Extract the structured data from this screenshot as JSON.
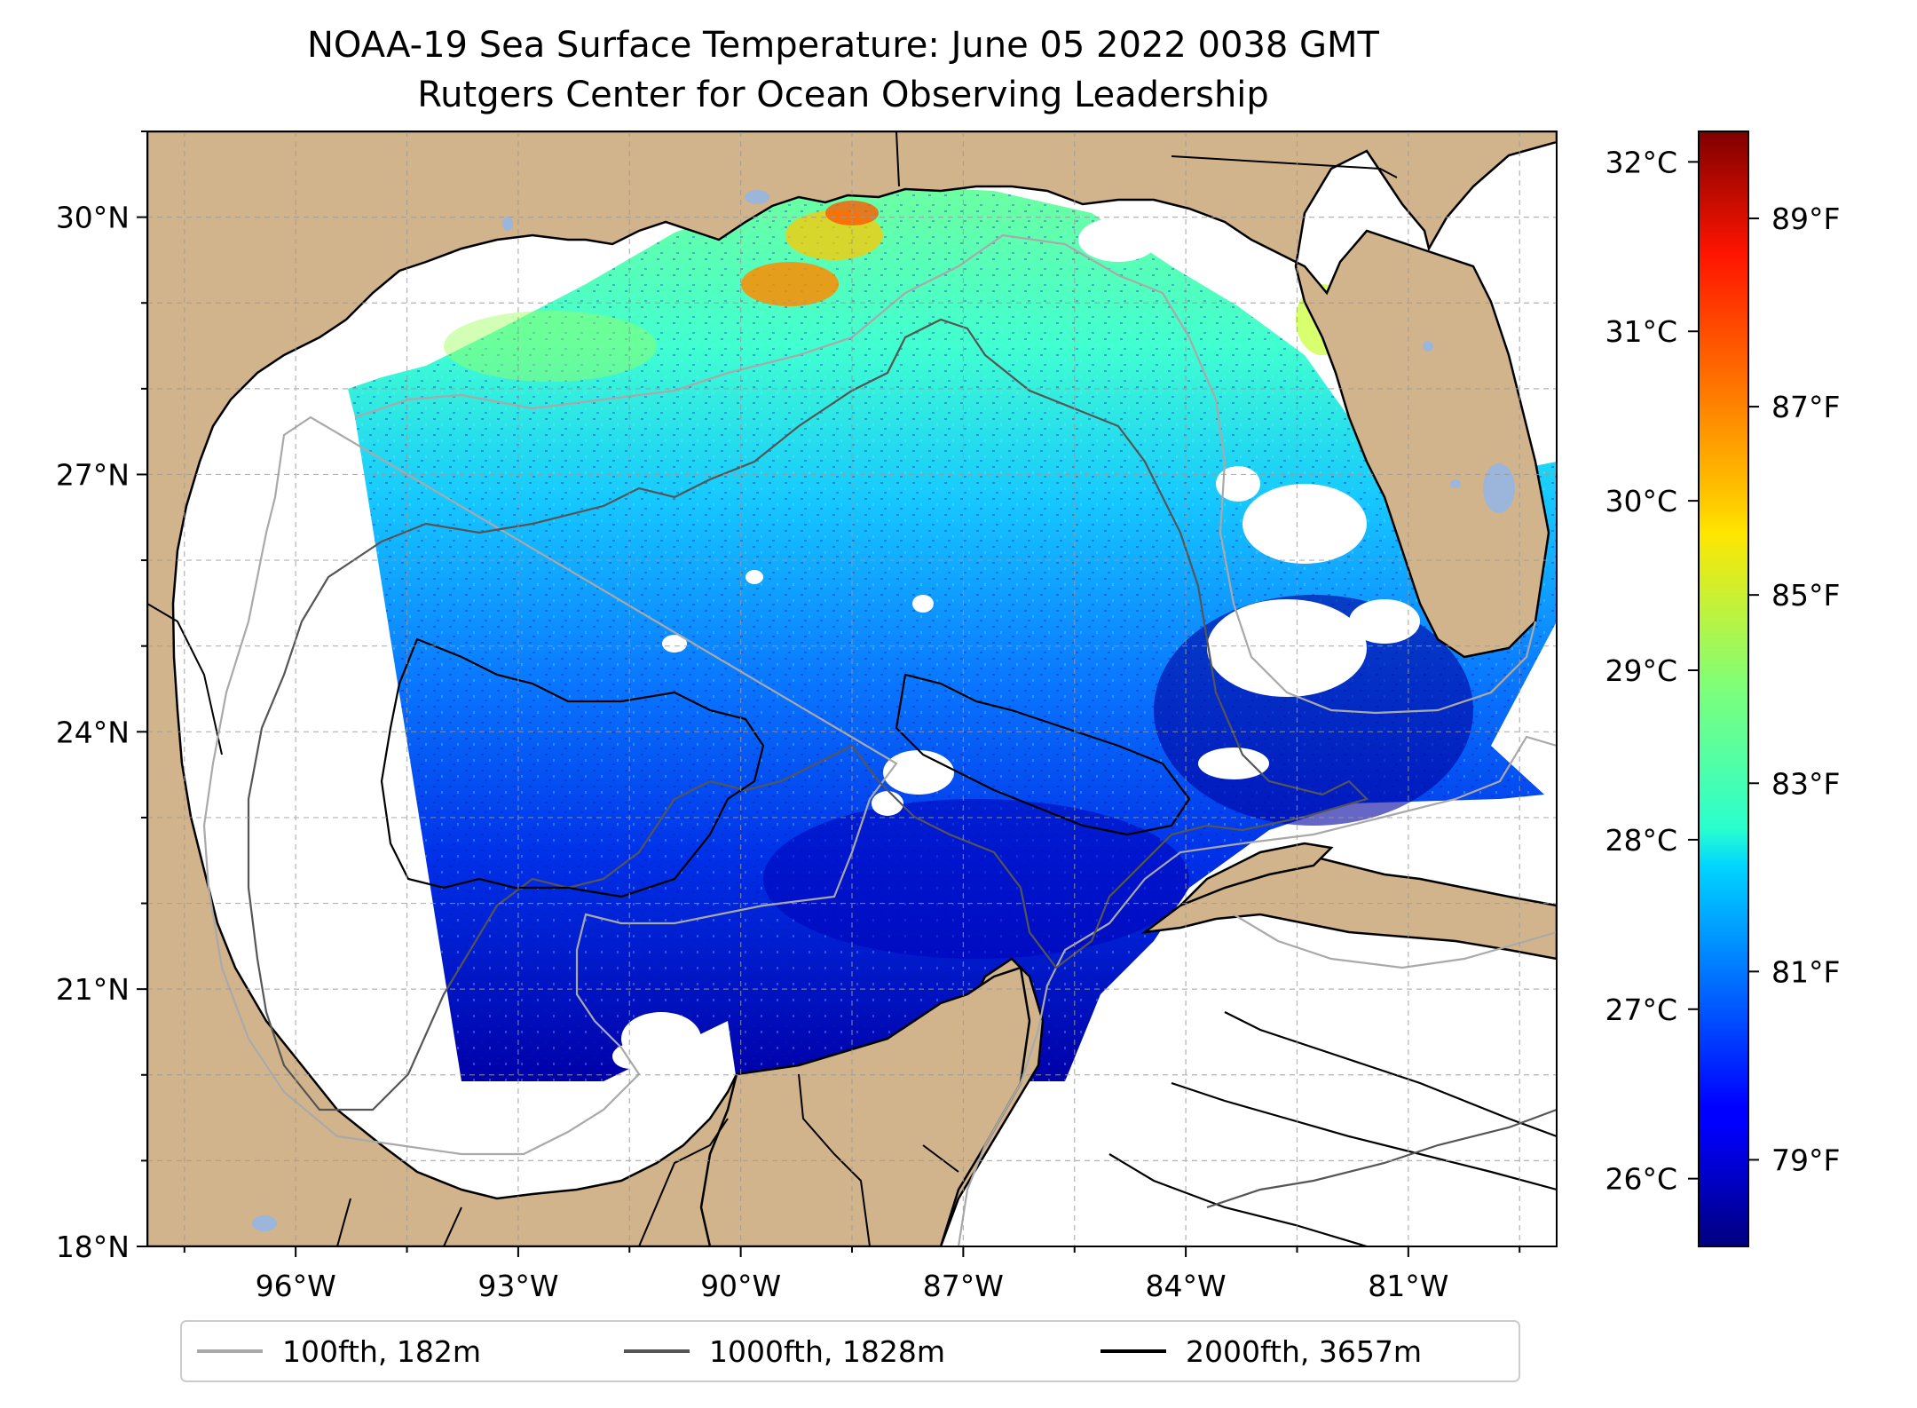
{
  "title": {
    "line1": "NOAA-19 Sea Surface Temperature: June 05 2022 0038 GMT",
    "line2": "Rutgers Center for Ocean Observing Leadership"
  },
  "map": {
    "lon_range": [
      -98.0,
      -79.0
    ],
    "lat_range": [
      18.0,
      31.0
    ],
    "land_color": "#d2b48c",
    "lake_color": "#9bb5db",
    "grid": true,
    "x_ticks": [
      {
        "value": -96,
        "label": "96°W"
      },
      {
        "value": -93,
        "label": "93°W"
      },
      {
        "value": -90,
        "label": "90°W"
      },
      {
        "value": -87,
        "label": "87°W"
      },
      {
        "value": -84,
        "label": "84°W"
      },
      {
        "value": -81,
        "label": "81°W"
      }
    ],
    "y_ticks": [
      {
        "value": 18,
        "label": "18°N"
      },
      {
        "value": 21,
        "label": "21°N"
      },
      {
        "value": 24,
        "label": "24°N"
      },
      {
        "value": 27,
        "label": "27°N"
      },
      {
        "value": 30,
        "label": "30°N"
      }
    ]
  },
  "colorbar": {
    "colormap": "jet",
    "celsius_ticks": [
      {
        "value": 26,
        "label": "26°C"
      },
      {
        "value": 27,
        "label": "27°C"
      },
      {
        "value": 28,
        "label": "28°C"
      },
      {
        "value": 29,
        "label": "29°C"
      },
      {
        "value": 30,
        "label": "30°C"
      },
      {
        "value": 31,
        "label": "31°C"
      },
      {
        "value": 32,
        "label": "32°C"
      }
    ],
    "fahrenheit_ticks": [
      {
        "value": 79,
        "label": "79°F"
      },
      {
        "value": 81,
        "label": "81°F"
      },
      {
        "value": 83,
        "label": "83°F"
      },
      {
        "value": 85,
        "label": "85°F"
      },
      {
        "value": 87,
        "label": "87°F"
      },
      {
        "value": 89,
        "label": "89°F"
      }
    ]
  },
  "legend": {
    "items": [
      {
        "label": "100fth, 182m",
        "color": "#a9a9a9"
      },
      {
        "label": "1000fth, 1828m",
        "color": "#555555"
      },
      {
        "label": "2000fth, 3657m",
        "color": "#000000"
      }
    ]
  }
}
